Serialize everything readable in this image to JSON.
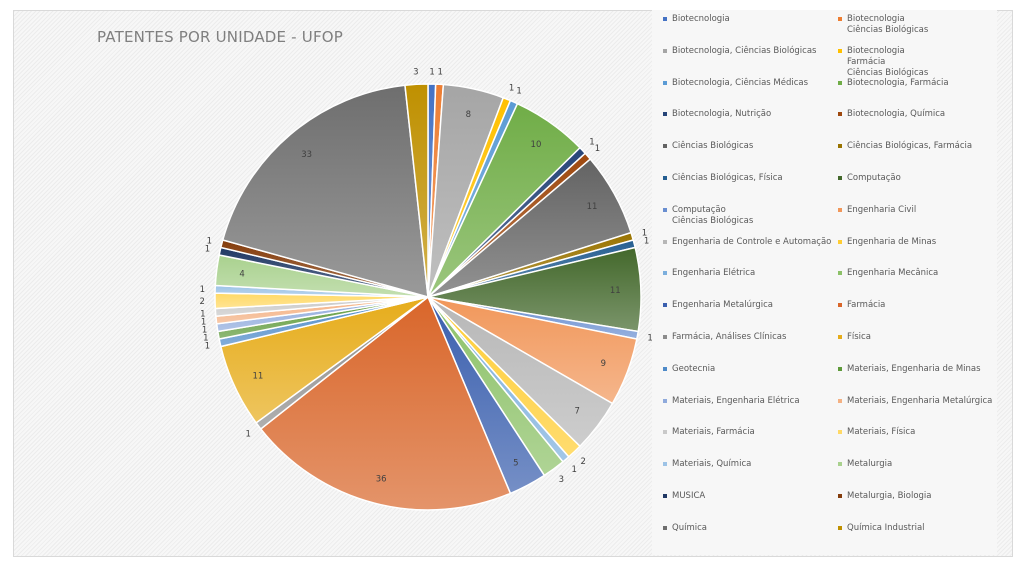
{
  "chart_data": {
    "type": "pie",
    "title": "PATENTES POR UNIDADE - UFOP",
    "legend_position": "right",
    "categories": [
      "Biotecnologia",
      "Biotecnologia\nCiências Biológicas",
      "Biotecnologia, Ciências Biológicas",
      "Biotecnologia\nFarmácia\nCiências Biológicas",
      "Biotecnologia, Ciências Médicas",
      "Biotecnologia, Farmácia",
      "Biotecnologia, Nutrição",
      "Biotecnologia, Química",
      "Ciências Biológicas",
      "Ciências Biológicas, Farmácia",
      "Ciências Biológicas, Física",
      "Computação",
      "Computação\nCiências Biológicas",
      "Engenharia Civil",
      "Engenharia de Controle e Automação",
      "Engenharia de Minas",
      "Engenharia Elétrica",
      "Engenharia Mecânica",
      "Engenharia Metalúrgica",
      "Farmácia",
      "Farmácia, Análises Clínicas",
      "Física",
      "Geotecnia",
      "Materiais, Engenharia de Minas",
      "Materiais, Engenharia Elétrica",
      "Materiais, Engenharia Metalúrgica",
      "Materiais, Farmácia",
      "Materiais, Física",
      "Materiais, Química",
      "Metalurgia",
      "MUSICA",
      "Metalurgia, Biologia",
      "Química",
      "Química Industrial"
    ],
    "values": [
      1,
      1,
      8,
      1,
      1,
      10,
      1,
      1,
      11,
      1,
      1,
      11,
      1,
      9,
      7,
      2,
      1,
      3,
      5,
      36,
      1,
      11,
      1,
      1,
      1,
      1,
      1,
      2,
      1,
      4,
      1,
      1,
      33,
      3
    ],
    "colors": [
      "#4472C4",
      "#ED7D31",
      "#A5A5A5",
      "#FFC000",
      "#5B9BD5",
      "#70AD47",
      "#264478",
      "#9E480E",
      "#636363",
      "#997300",
      "#255E91",
      "#43682B",
      "#698ED0",
      "#F1975A",
      "#B7B7B7",
      "#FFCD33",
      "#7CAFDD",
      "#8CC168",
      "#3A5FAE",
      "#D9662A",
      "#8C8C8C",
      "#E6AC1A",
      "#4E8AC8",
      "#5E9A3A",
      "#8FAADC",
      "#F4B183",
      "#C9C9C9",
      "#FFD966",
      "#9DC3E6",
      "#A9D18E",
      "#203864",
      "#843C0C",
      "#6E6E6E",
      "#BF9000"
    ]
  }
}
